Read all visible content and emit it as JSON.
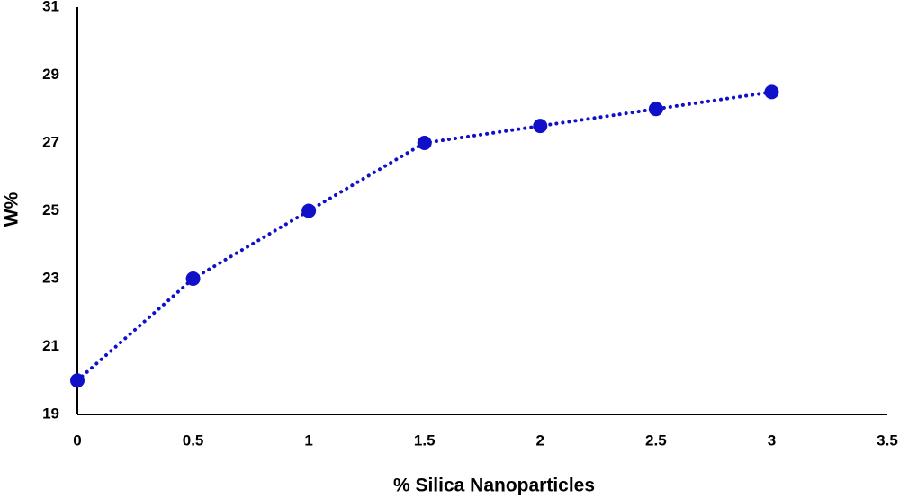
{
  "chart_data": {
    "type": "line",
    "x_label": "% Silica Nanoparticles",
    "y_label": "W%",
    "x": [
      0,
      0.5,
      1,
      1.5,
      2,
      2.5,
      3
    ],
    "values": [
      20,
      23,
      25,
      27,
      27.5,
      28,
      28.5
    ],
    "color": "#1010c8",
    "line_style": "dotted",
    "markers": true,
    "xlim": [
      0,
      3.5
    ],
    "xticks": [
      0,
      0.5,
      1,
      1.5,
      2,
      2.5,
      3,
      3.5
    ],
    "ylim": [
      19,
      31
    ],
    "yticks": [
      19,
      21,
      23,
      25,
      27,
      29,
      31
    ],
    "grid": false
  }
}
